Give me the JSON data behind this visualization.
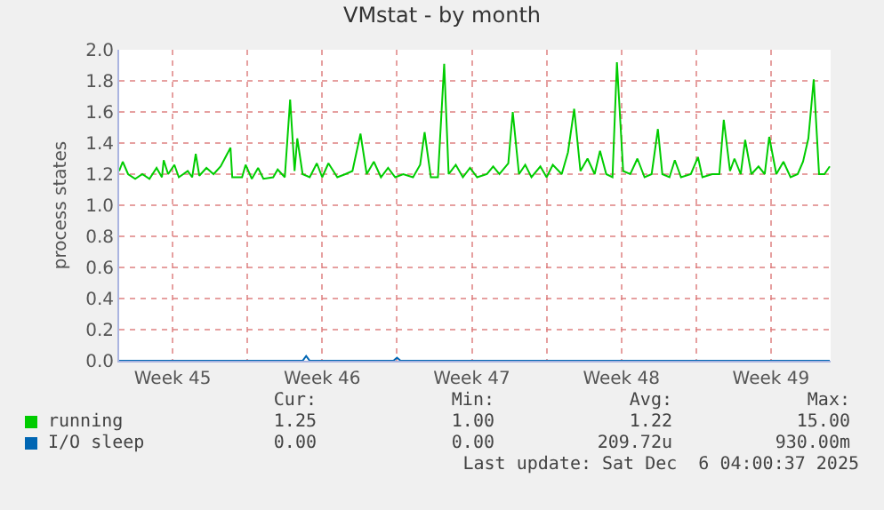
{
  "chart_data": {
    "type": "line",
    "title": "VMstat - by month",
    "ylabel": "process states",
    "x": [
      "2025-11-03T00:00",
      "2025-11-03T04:00",
      "2025-11-03T10:00",
      "2025-11-03T18:00",
      "2025-11-04T02:00",
      "2025-11-04T10:00",
      "2025-11-04T18:00",
      "2025-11-05T00:00",
      "2025-11-05T02:00",
      "2025-11-05T07:00",
      "2025-11-05T14:00",
      "2025-11-05T19:00",
      "2025-11-06T05:00",
      "2025-11-06T10:00",
      "2025-11-06T14:00",
      "2025-11-06T18:00",
      "2025-11-07T02:00",
      "2025-11-07T10:00",
      "2025-11-07T18:00",
      "2025-11-08T05:00",
      "2025-11-08T07:00",
      "2025-11-08T18:00",
      "2025-11-08T22:00",
      "2025-11-09T05:00",
      "2025-11-09T12:00",
      "2025-11-09T18:00",
      "2025-11-10T05:00",
      "2025-11-10T10:00",
      "2025-11-10T18:00",
      "2025-11-11T00:00",
      "2025-11-11T05:00",
      "2025-11-11T08:00",
      "2025-11-11T14:00",
      "2025-11-11T22:00",
      "2025-11-12T06:00",
      "2025-11-12T12:00",
      "2025-11-12T19:00",
      "2025-11-13T05:00",
      "2025-11-13T14:00",
      "2025-11-13T22:00",
      "2025-11-14T07:00",
      "2025-11-14T14:00",
      "2025-11-14T22:00",
      "2025-11-15T06:00",
      "2025-11-15T14:00",
      "2025-11-15T22:00",
      "2025-11-16T07:00",
      "2025-11-16T18:00",
      "2025-11-17T02:00",
      "2025-11-17T07:00",
      "2025-11-17T14:00",
      "2025-11-17T22:00",
      "2025-11-18T05:00",
      "2025-11-18T10:00",
      "2025-11-18T18:00",
      "2025-11-19T02:00",
      "2025-11-19T10:00",
      "2025-11-19T18:00",
      "2025-11-20T05:00",
      "2025-11-20T12:00",
      "2025-11-20T19:00",
      "2025-11-21T05:00",
      "2025-11-21T10:00",
      "2025-11-21T17:00",
      "2025-11-22T00:00",
      "2025-11-22T07:00",
      "2025-11-22T17:00",
      "2025-11-23T00:00",
      "2025-11-23T07:00",
      "2025-11-23T17:00",
      "2025-11-24T00:00",
      "2025-11-24T07:00",
      "2025-11-24T14:00",
      "2025-11-24T22:00",
      "2025-11-25T06:00",
      "2025-11-25T12:00",
      "2025-11-25T19:00",
      "2025-11-26T02:00",
      "2025-11-26T07:00",
      "2025-11-26T14:00",
      "2025-11-26T22:00",
      "2025-11-27T06:00",
      "2025-11-27T14:00",
      "2025-11-27T22:00",
      "2025-11-28T05:00",
      "2025-11-28T10:00",
      "2025-11-28T18:00",
      "2025-11-29T00:00",
      "2025-11-29T07:00",
      "2025-11-29T18:00",
      "2025-11-30T02:00",
      "2025-11-30T07:00",
      "2025-11-30T18:00",
      "2025-12-01T02:00",
      "2025-12-01T07:00",
      "2025-12-01T14:00",
      "2025-12-01T19:00",
      "2025-12-02T02:00",
      "2025-12-02T07:00",
      "2025-12-02T14:00",
      "2025-12-02T22:00",
      "2025-12-03T05:00",
      "2025-12-03T10:00",
      "2025-12-03T18:00",
      "2025-12-04T02:00",
      "2025-12-04T10:00",
      "2025-12-04T18:00",
      "2025-12-05T00:00",
      "2025-12-05T06:00",
      "2025-12-05T12:00",
      "2025-12-05T18:00",
      "2025-12-06T00:00",
      "2025-12-06T06:00"
    ],
    "series": [
      {
        "name": "running",
        "color": "#00cc00",
        "values": [
          1.22,
          1.28,
          1.2,
          1.17,
          1.2,
          1.17,
          1.24,
          1.18,
          1.29,
          1.2,
          1.26,
          1.18,
          1.22,
          1.18,
          1.33,
          1.19,
          1.24,
          1.2,
          1.25,
          1.37,
          1.18,
          1.18,
          1.26,
          1.17,
          1.24,
          1.17,
          1.18,
          1.23,
          1.18,
          1.68,
          1.22,
          1.43,
          1.2,
          1.18,
          1.27,
          1.18,
          1.27,
          1.18,
          1.2,
          1.22,
          1.46,
          1.2,
          1.28,
          1.18,
          1.24,
          1.18,
          1.2,
          1.18,
          1.26,
          1.47,
          1.18,
          1.18,
          1.91,
          1.2,
          1.26,
          1.18,
          1.24,
          1.18,
          1.2,
          1.25,
          1.2,
          1.27,
          1.6,
          1.2,
          1.26,
          1.18,
          1.25,
          1.18,
          1.26,
          1.2,
          1.34,
          1.62,
          1.22,
          1.3,
          1.2,
          1.35,
          1.2,
          1.18,
          1.92,
          1.22,
          1.2,
          1.3,
          1.18,
          1.2,
          1.49,
          1.2,
          1.18,
          1.29,
          1.18,
          1.2,
          1.31,
          1.18,
          1.2,
          1.2,
          1.55,
          1.22,
          1.3,
          1.2,
          1.42,
          1.2,
          1.25,
          1.2,
          1.44,
          1.2,
          1.28,
          1.18,
          1.2,
          1.28,
          1.43,
          1.81,
          1.2,
          1.2,
          1.25
        ]
      },
      {
        "name": "I/O sleep",
        "color": "#0066b3",
        "x": [
          "2025-11-03T00:00",
          "2025-11-11T14:00",
          "2025-11-11T18:00",
          "2025-11-11T22:00",
          "2025-11-15T20:00",
          "2025-11-16T00:00",
          "2025-11-16T04:00",
          "2025-12-06T06:00"
        ],
        "values": [
          0,
          0,
          0.03,
          0,
          0,
          0.02,
          0,
          0
        ]
      }
    ],
    "xlim": [
      "2025-11-03T00:00",
      "2025-12-06T07:00"
    ],
    "xticks": [
      {
        "value": "2025-11-05T12:00",
        "label": "Week 45"
      },
      {
        "value": "2025-11-09",
        "label": null
      },
      {
        "value": "2025-11-12T12:00",
        "label": "Week 46"
      },
      {
        "value": "2025-11-16",
        "label": null
      },
      {
        "value": "2025-11-19T12:00",
        "label": "Week 47"
      },
      {
        "value": "2025-11-23",
        "label": null
      },
      {
        "value": "2025-11-26T12:00",
        "label": "Week 48"
      },
      {
        "value": "2025-11-30",
        "label": null
      },
      {
        "value": "2025-12-03T12:00",
        "label": "Week 49"
      }
    ],
    "ylim": [
      0,
      2.0
    ],
    "yticks": [
      {
        "value": 0,
        "label": "0.0"
      },
      0.2,
      0.4,
      0.6,
      0.8,
      {
        "value": 1,
        "label": "1.0"
      },
      1.2,
      1.4,
      1.6,
      1.8,
      {
        "value": 2,
        "label": "2.0"
      }
    ],
    "grid": true,
    "legend": "bottom",
    "marker": "none",
    "line_style": "solid",
    "annotations": [
      "Cur:",
      "Min:",
      "Avg:",
      "Max:",
      "1.25",
      "1.00",
      "1.22",
      "15.00",
      "0.00",
      "0.00",
      "209.72u",
      "930.00m",
      "Last update: Sat Dec  6 04:00:37 2025"
    ]
  }
}
